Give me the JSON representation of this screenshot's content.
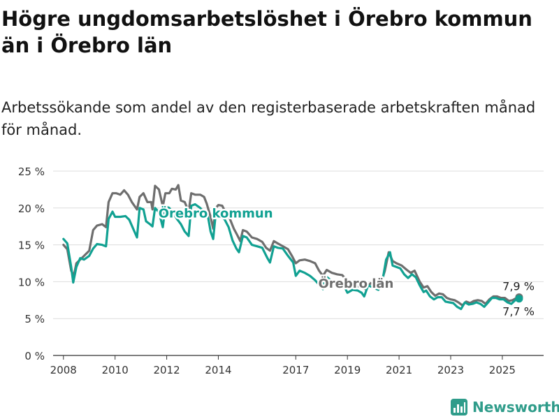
{
  "header": {
    "title": "Högre ungdomsarbetslöshet i Örebro kommun än i Örebro län",
    "subtitle": "Arbetssökande som andel av den registerbaserade arbetskraften månad för månad."
  },
  "brand": {
    "name": "Newsworthy",
    "icon": "bar-chart-logo-icon"
  },
  "colors": {
    "kommun": "#11a192",
    "lan": "#6e6e6e",
    "grid": "#dddddd",
    "brand": "#2f9c8a"
  },
  "chart_data": {
    "type": "line",
    "title": "Högre ungdomsarbetslöshet i Örebro kommun än i Örebro län",
    "subtitle": "Arbetssökande som andel av den registerbaserade arbetskraften månad för månad.",
    "xlabel": "",
    "ylabel": "",
    "xlim": [
      2007.6,
      2026.6
    ],
    "ylim": [
      0,
      25
    ],
    "yticks": [
      0,
      5,
      10,
      15,
      20,
      25
    ],
    "ytick_labels": [
      "0 %",
      "5 %",
      "10 %",
      "15 %",
      "20 %",
      "25 %"
    ],
    "xticks": [
      2008,
      2010,
      2012,
      2014,
      2017,
      2019,
      2021,
      2023,
      2025
    ],
    "xtick_labels": [
      "2008",
      "2010",
      "2012",
      "2014",
      "2017",
      "2019",
      "2021",
      "2023",
      "2025"
    ],
    "grid": true,
    "legend": "inline labels",
    "series": [
      {
        "name": "Örebro kommun",
        "color": "#11a192",
        "end_label": "7,7 %",
        "points": [
          [
            2008.0,
            15.8
          ],
          [
            2008.15,
            15.2
          ],
          [
            2008.3,
            12.0
          ],
          [
            2008.38,
            9.9
          ],
          [
            2008.5,
            12.0
          ],
          [
            2008.65,
            13.2
          ],
          [
            2008.8,
            13.0
          ],
          [
            2009.0,
            13.5
          ],
          [
            2009.15,
            14.5
          ],
          [
            2009.3,
            15.1
          ],
          [
            2009.5,
            15.0
          ],
          [
            2009.65,
            14.8
          ],
          [
            2009.75,
            18.5
          ],
          [
            2009.9,
            19.5
          ],
          [
            2010.0,
            18.8
          ],
          [
            2010.2,
            18.8
          ],
          [
            2010.4,
            18.9
          ],
          [
            2010.55,
            18.4
          ],
          [
            2010.75,
            16.8
          ],
          [
            2010.85,
            16.0
          ],
          [
            2010.95,
            20.0
          ],
          [
            2011.1,
            19.8
          ],
          [
            2011.2,
            18.2
          ],
          [
            2011.35,
            17.8
          ],
          [
            2011.45,
            17.5
          ],
          [
            2011.55,
            20.0
          ],
          [
            2011.7,
            19.4
          ],
          [
            2011.85,
            17.4
          ],
          [
            2011.95,
            20.2
          ],
          [
            2012.1,
            20.0
          ],
          [
            2012.25,
            19.3
          ],
          [
            2012.4,
            18.5
          ],
          [
            2012.55,
            17.8
          ],
          [
            2012.7,
            16.8
          ],
          [
            2012.85,
            16.2
          ],
          [
            2012.95,
            20.3
          ],
          [
            2013.1,
            20.5
          ],
          [
            2013.3,
            20.0
          ],
          [
            2013.45,
            19.4
          ],
          [
            2013.6,
            18.8
          ],
          [
            2013.7,
            16.8
          ],
          [
            2013.8,
            15.8
          ],
          [
            2013.9,
            19.3
          ],
          [
            2014.1,
            19.0
          ],
          [
            2014.25,
            18.4
          ],
          [
            2014.4,
            17.4
          ],
          [
            2014.55,
            15.6
          ],
          [
            2014.7,
            14.5
          ],
          [
            2014.8,
            14.0
          ],
          [
            2014.95,
            16.2
          ],
          [
            2015.1,
            16.0
          ],
          [
            2015.3,
            15.0
          ],
          [
            2015.5,
            14.8
          ],
          [
            2015.7,
            14.6
          ],
          [
            2015.9,
            13.2
          ],
          [
            2016.0,
            12.6
          ],
          [
            2016.15,
            14.8
          ],
          [
            2016.3,
            14.6
          ],
          [
            2016.5,
            14.5
          ],
          [
            2016.7,
            13.5
          ],
          [
            2016.9,
            12.6
          ],
          [
            2017.0,
            10.8
          ],
          [
            2017.15,
            11.5
          ],
          [
            2017.35,
            11.2
          ],
          [
            2017.55,
            10.8
          ],
          [
            2017.75,
            10.2
          ],
          [
            2017.95,
            9.4
          ],
          [
            2018.05,
            9.0
          ],
          [
            2018.15,
            10.8
          ],
          [
            2018.35,
            10.2
          ],
          [
            2018.55,
            10.0
          ],
          [
            2018.75,
            10.0
          ],
          [
            2018.9,
            9.2
          ],
          [
            2019.0,
            8.5
          ],
          [
            2019.2,
            8.9
          ],
          [
            2019.4,
            8.8
          ],
          [
            2019.55,
            8.5
          ],
          [
            2019.65,
            8.0
          ],
          [
            2019.8,
            9.5
          ],
          [
            2020.0,
            9.2
          ],
          [
            2020.2,
            8.9
          ],
          [
            2020.35,
            10.0
          ],
          [
            2020.5,
            13.0
          ],
          [
            2020.65,
            14.0
          ],
          [
            2020.75,
            12.2
          ],
          [
            2020.9,
            12.0
          ],
          [
            2021.05,
            11.8
          ],
          [
            2021.2,
            11.0
          ],
          [
            2021.35,
            10.5
          ],
          [
            2021.5,
            11.0
          ],
          [
            2021.65,
            10.6
          ],
          [
            2021.8,
            9.5
          ],
          [
            2021.95,
            8.6
          ],
          [
            2022.05,
            8.8
          ],
          [
            2022.2,
            8.0
          ],
          [
            2022.35,
            7.6
          ],
          [
            2022.5,
            7.9
          ],
          [
            2022.65,
            7.9
          ],
          [
            2022.8,
            7.3
          ],
          [
            2022.95,
            7.2
          ],
          [
            2023.1,
            7.1
          ],
          [
            2023.25,
            6.6
          ],
          [
            2023.4,
            6.3
          ],
          [
            2023.55,
            7.2
          ],
          [
            2023.7,
            6.9
          ],
          [
            2023.85,
            7.0
          ],
          [
            2024.0,
            7.2
          ],
          [
            2024.15,
            7.0
          ],
          [
            2024.3,
            6.6
          ],
          [
            2024.45,
            7.2
          ],
          [
            2024.6,
            7.8
          ],
          [
            2024.75,
            7.8
          ],
          [
            2024.9,
            7.6
          ],
          [
            2025.05,
            7.6
          ],
          [
            2025.2,
            7.2
          ],
          [
            2025.35,
            7.0
          ],
          [
            2025.5,
            7.5
          ],
          [
            2025.65,
            7.7
          ]
        ]
      },
      {
        "name": "Örebro län",
        "color": "#6e6e6e",
        "end_label": "7,9 %",
        "points": [
          [
            2008.0,
            15.0
          ],
          [
            2008.15,
            14.4
          ],
          [
            2008.3,
            11.5
          ],
          [
            2008.4,
            10.8
          ],
          [
            2008.5,
            12.5
          ],
          [
            2008.65,
            13.0
          ],
          [
            2008.8,
            13.5
          ],
          [
            2009.0,
            14.2
          ],
          [
            2009.15,
            17.0
          ],
          [
            2009.3,
            17.6
          ],
          [
            2009.5,
            17.8
          ],
          [
            2009.65,
            17.4
          ],
          [
            2009.75,
            20.8
          ],
          [
            2009.9,
            22.0
          ],
          [
            2010.05,
            22.0
          ],
          [
            2010.2,
            21.8
          ],
          [
            2010.35,
            22.4
          ],
          [
            2010.5,
            21.8
          ],
          [
            2010.65,
            20.8
          ],
          [
            2010.85,
            19.8
          ],
          [
            2010.95,
            21.5
          ],
          [
            2011.1,
            22.0
          ],
          [
            2011.25,
            20.8
          ],
          [
            2011.4,
            20.8
          ],
          [
            2011.45,
            19.8
          ],
          [
            2011.55,
            23.0
          ],
          [
            2011.7,
            22.5
          ],
          [
            2011.85,
            20.2
          ],
          [
            2011.95,
            22.0
          ],
          [
            2012.1,
            22.0
          ],
          [
            2012.2,
            22.6
          ],
          [
            2012.35,
            22.5
          ],
          [
            2012.45,
            23.1
          ],
          [
            2012.55,
            21.0
          ],
          [
            2012.7,
            20.8
          ],
          [
            2012.85,
            19.5
          ],
          [
            2012.95,
            22.0
          ],
          [
            2013.1,
            21.8
          ],
          [
            2013.3,
            21.8
          ],
          [
            2013.45,
            21.5
          ],
          [
            2013.55,
            20.6
          ],
          [
            2013.7,
            18.8
          ],
          [
            2013.8,
            17.2
          ],
          [
            2013.9,
            20.0
          ],
          [
            2014.0,
            20.4
          ],
          [
            2014.15,
            20.3
          ],
          [
            2014.3,
            19.3
          ],
          [
            2014.45,
            18.5
          ],
          [
            2014.6,
            17.2
          ],
          [
            2014.75,
            16.2
          ],
          [
            2014.85,
            15.5
          ],
          [
            2014.95,
            17.0
          ],
          [
            2015.1,
            16.8
          ],
          [
            2015.3,
            16.0
          ],
          [
            2015.5,
            15.8
          ],
          [
            2015.7,
            15.4
          ],
          [
            2015.85,
            14.6
          ],
          [
            2016.0,
            14.2
          ],
          [
            2016.15,
            15.5
          ],
          [
            2016.3,
            15.2
          ],
          [
            2016.5,
            14.8
          ],
          [
            2016.7,
            14.4
          ],
          [
            2016.85,
            13.5
          ],
          [
            2017.0,
            12.5
          ],
          [
            2017.15,
            12.9
          ],
          [
            2017.35,
            13.0
          ],
          [
            2017.55,
            12.8
          ],
          [
            2017.75,
            12.5
          ],
          [
            2017.9,
            11.5
          ],
          [
            2018.05,
            10.8
          ],
          [
            2018.2,
            11.6
          ],
          [
            2018.4,
            11.2
          ],
          [
            2018.6,
            11.0
          ],
          [
            2018.8,
            10.9
          ],
          [
            2018.95,
            10.3
          ],
          [
            2019.1,
            9.5
          ],
          [
            2019.3,
            9.5
          ],
          [
            2019.5,
            9.3
          ],
          [
            2019.7,
            9.0
          ],
          [
            2019.9,
            9.8
          ],
          [
            2020.1,
            9.5
          ],
          [
            2020.3,
            9.8
          ],
          [
            2020.45,
            11.5
          ],
          [
            2020.6,
            14.0
          ],
          [
            2020.75,
            12.8
          ],
          [
            2020.9,
            12.5
          ],
          [
            2021.1,
            12.2
          ],
          [
            2021.3,
            11.6
          ],
          [
            2021.45,
            11.2
          ],
          [
            2021.6,
            11.5
          ],
          [
            2021.8,
            10.0
          ],
          [
            2021.95,
            9.2
          ],
          [
            2022.1,
            9.4
          ],
          [
            2022.25,
            8.6
          ],
          [
            2022.4,
            8.1
          ],
          [
            2022.55,
            8.4
          ],
          [
            2022.7,
            8.3
          ],
          [
            2022.85,
            7.8
          ],
          [
            2023.0,
            7.6
          ],
          [
            2023.15,
            7.5
          ],
          [
            2023.3,
            7.2
          ],
          [
            2023.45,
            6.8
          ],
          [
            2023.6,
            7.3
          ],
          [
            2023.75,
            7.1
          ],
          [
            2023.9,
            7.4
          ],
          [
            2024.05,
            7.5
          ],
          [
            2024.2,
            7.4
          ],
          [
            2024.35,
            7.0
          ],
          [
            2024.5,
            7.6
          ],
          [
            2024.65,
            8.0
          ],
          [
            2024.8,
            8.0
          ],
          [
            2024.95,
            7.8
          ],
          [
            2025.1,
            7.8
          ],
          [
            2025.25,
            7.4
          ],
          [
            2025.4,
            7.5
          ],
          [
            2025.55,
            7.8
          ],
          [
            2025.65,
            7.9
          ]
        ]
      }
    ],
    "annotations": [
      {
        "text": "Örebro kommun",
        "series": "Örebro kommun"
      },
      {
        "text": "Örebro län",
        "series": "Örebro län"
      }
    ]
  }
}
